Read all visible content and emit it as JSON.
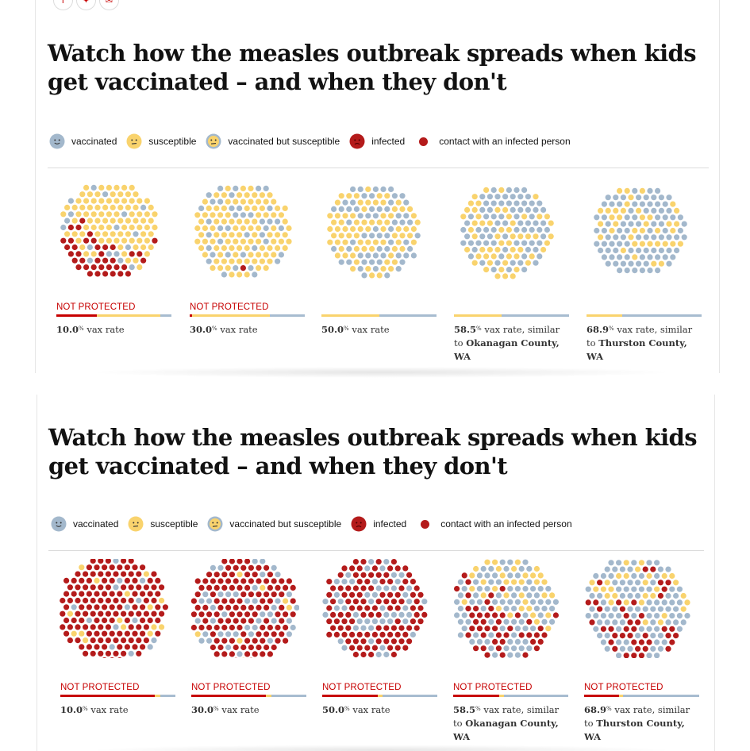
{
  "colors": {
    "vaccinated": "#a3b8cc",
    "susceptible": "#f9d36d",
    "infected": "#b41b1b",
    "not_protected": "#c70000",
    "bar_base": "#a7bcd0"
  },
  "share_icons": [
    {
      "name": "facebook-icon",
      "glyph": "f"
    },
    {
      "name": "twitter-icon",
      "glyph": "✦"
    },
    {
      "name": "email-icon",
      "glyph": "✉"
    }
  ],
  "legend": {
    "vaccinated": "vaccinated",
    "susceptible": "susceptible",
    "vaccinated_but_susceptible": "vaccinated but susceptible",
    "infected": "infected",
    "contact": "contact with an infected person"
  },
  "panels": [
    {
      "headline_line1": "Watch how the measles outbreak spreads when kids",
      "headline_line2": "get vaccinated – and when they don't",
      "simulations": [
        {
          "not_protected": "NOT PROTECTED",
          "rate": "10.0",
          "pct": "%",
          "text": " vax rate",
          "extra": "",
          "place": "",
          "infected_share": 0.33,
          "red_bar": 0.35
        },
        {
          "not_protected": "NOT PROTECTED",
          "rate": "30.0",
          "pct": "%",
          "text": " vax rate",
          "extra": "",
          "place": "",
          "infected_share": 0.02,
          "red_bar": 0.02
        },
        {
          "not_protected": "",
          "rate": "50.0",
          "pct": "%",
          "text": " vax rate",
          "extra": "",
          "place": "",
          "infected_share": 0.0,
          "red_bar": 0.0
        },
        {
          "not_protected": "",
          "rate": "58.5",
          "pct": "%",
          "text": " vax rate, similar",
          "extra": "to ",
          "place": "Okanagan County, WA",
          "infected_share": 0.0,
          "red_bar": 0.0
        },
        {
          "not_protected": "",
          "rate": "68.9",
          "pct": "%",
          "text": " vax rate, similar",
          "extra": "to ",
          "place": "Thurston County, WA",
          "infected_share": 0.0,
          "red_bar": 0.0
        }
      ]
    },
    {
      "headline_line1": "Watch how the measles outbreak spreads when kids",
      "headline_line2": "get vaccinated – and when they don't",
      "simulations": [
        {
          "not_protected": "NOT PROTECTED",
          "rate": "10.0",
          "pct": "%",
          "text": " vax rate",
          "extra": "",
          "place": "",
          "infected_share": 0.86,
          "red_bar": 0.82
        },
        {
          "not_protected": "NOT PROTECTED",
          "rate": "30.0",
          "pct": "%",
          "text": " vax rate",
          "extra": "",
          "place": "",
          "infected_share": 0.68,
          "red_bar": 0.65
        },
        {
          "not_protected": "NOT PROTECTED",
          "rate": "50.0",
          "pct": "%",
          "text": " vax rate",
          "extra": "",
          "place": "",
          "infected_share": 0.5,
          "red_bar": 0.48
        },
        {
          "not_protected": "NOT PROTECTED",
          "rate": "58.5",
          "pct": "%",
          "text": " vax rate, similar",
          "extra": "to ",
          "place": "Okanagan County, WA",
          "infected_share": 0.38,
          "red_bar": 0.4
        },
        {
          "not_protected": "NOT PROTECTED",
          "rate": "68.9",
          "pct": "%",
          "text": " vax rate, similar",
          "extra": "to ",
          "place": "Thurston County, WA",
          "infected_share": 0.3,
          "red_bar": 0.3
        }
      ]
    }
  ]
}
